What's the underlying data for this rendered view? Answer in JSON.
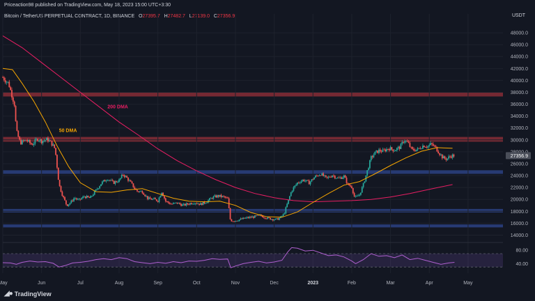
{
  "header": {
    "publish_note": "Priceaction98 published on TradingView.com, May 18, 2023 15:00 UTC+3:30",
    "symbol_desc": "Bitcoin / TetherUS PERPETUAL CONTRACT, 1D, BINANCE",
    "ohlc": [
      {
        "label": "O",
        "value": "27395.7"
      },
      {
        "label": "H",
        "value": "27482.7"
      },
      {
        "label": "L",
        "value": "27139.0"
      },
      {
        "label": "C",
        "value": "27356.9"
      }
    ],
    "currency": "USDT"
  },
  "footer": {
    "brand": "TradingView"
  },
  "colors": {
    "background": "#131722",
    "up": "#26a69a",
    "down": "#ef5350",
    "ma50": "#f7a600",
    "ma200": "#e91e63",
    "resistance_zone": "#7a2a35",
    "support_zone": "#283c78",
    "rsi_line": "#b060d0",
    "price_label": "#4a4e59"
  },
  "chart_data": {
    "type": "candlestick",
    "ylim": [
      13000,
      50000
    ],
    "y_ticks": [
      14000,
      16000,
      18000,
      20000,
      22000,
      24000,
      26000,
      28000,
      30000,
      32000,
      34000,
      36000,
      38000,
      40000,
      42000,
      44000,
      46000,
      48000
    ],
    "y_tick_labels": [
      "14000.0",
      "16000.0",
      "18000.0",
      "20000.0",
      "22000.0",
      "24000.0",
      "26000.0",
      "28000.0",
      "30000.0",
      "32000.0",
      "34000.0",
      "36000.0",
      "38000.0",
      "40000.0",
      "42000.0",
      "44000.0",
      "46000.0",
      "48000.0"
    ],
    "x_ticks": [
      {
        "label": "May",
        "month": 0
      },
      {
        "label": "Jun",
        "month": 1
      },
      {
        "label": "Jul",
        "month": 2
      },
      {
        "label": "Aug",
        "month": 3
      },
      {
        "label": "Sep",
        "month": 4
      },
      {
        "label": "Oct",
        "month": 5
      },
      {
        "label": "Nov",
        "month": 6
      },
      {
        "label": "Dec",
        "month": 7
      },
      {
        "label": "2023",
        "month": 8
      },
      {
        "label": "Feb",
        "month": 9
      },
      {
        "label": "Mar",
        "month": 10
      },
      {
        "label": "Apr",
        "month": 11
      },
      {
        "label": "May",
        "month": 12
      }
    ],
    "x_range_months": [
      0,
      12.9
    ],
    "last_price": "27356.9",
    "last_price_value": 27356.9,
    "price_series": [
      [
        0.0,
        40500
      ],
      [
        0.15,
        39500
      ],
      [
        0.3,
        36000
      ],
      [
        0.35,
        31500
      ],
      [
        0.45,
        29500
      ],
      [
        0.6,
        30000
      ],
      [
        0.75,
        29200
      ],
      [
        0.9,
        30200
      ],
      [
        1.0,
        29800
      ],
      [
        1.15,
        30100
      ],
      [
        1.25,
        29500
      ],
      [
        1.35,
        28500
      ],
      [
        1.45,
        22500
      ],
      [
        1.55,
        20500
      ],
      [
        1.65,
        19000
      ],
      [
        1.75,
        19500
      ],
      [
        1.85,
        20300
      ],
      [
        1.95,
        19800
      ],
      [
        2.1,
        20500
      ],
      [
        2.25,
        20200
      ],
      [
        2.4,
        21500
      ],
      [
        2.55,
        22800
      ],
      [
        2.7,
        23500
      ],
      [
        2.85,
        22800
      ],
      [
        3.0,
        23200
      ],
      [
        3.1,
        24200
      ],
      [
        3.2,
        23600
      ],
      [
        3.3,
        22800
      ],
      [
        3.45,
        21400
      ],
      [
        3.6,
        21300
      ],
      [
        3.75,
        20100
      ],
      [
        3.9,
        20000
      ],
      [
        4.0,
        19800
      ],
      [
        4.1,
        21300
      ],
      [
        4.2,
        19700
      ],
      [
        4.35,
        19200
      ],
      [
        4.5,
        19400
      ],
      [
        4.65,
        19000
      ],
      [
        4.8,
        19300
      ],
      [
        4.95,
        19500
      ],
      [
        5.1,
        19200
      ],
      [
        5.25,
        19600
      ],
      [
        5.4,
        20300
      ],
      [
        5.55,
        20600
      ],
      [
        5.7,
        20400
      ],
      [
        5.8,
        20100
      ],
      [
        5.87,
        16500
      ],
      [
        5.95,
        16400
      ],
      [
        6.1,
        16600
      ],
      [
        6.3,
        16900
      ],
      [
        6.5,
        17100
      ],
      [
        6.65,
        17300
      ],
      [
        6.8,
        16900
      ],
      [
        6.95,
        16700
      ],
      [
        7.05,
        16600
      ],
      [
        7.15,
        16900
      ],
      [
        7.25,
        17500
      ],
      [
        7.35,
        19500
      ],
      [
        7.45,
        21500
      ],
      [
        7.6,
        22800
      ],
      [
        7.75,
        23300
      ],
      [
        7.9,
        22800
      ],
      [
        8.05,
        23800
      ],
      [
        8.2,
        24300
      ],
      [
        8.35,
        23500
      ],
      [
        8.5,
        24100
      ],
      [
        8.65,
        23500
      ],
      [
        8.8,
        23900
      ],
      [
        8.9,
        22500
      ],
      [
        9.0,
        22100
      ],
      [
        9.08,
        20200
      ],
      [
        9.2,
        20800
      ],
      [
        9.3,
        22500
      ],
      [
        9.4,
        24800
      ],
      [
        9.5,
        27000
      ],
      [
        9.6,
        27800
      ],
      [
        9.7,
        28200
      ],
      [
        9.8,
        28100
      ],
      [
        9.95,
        28600
      ],
      [
        10.1,
        28300
      ],
      [
        10.25,
        28800
      ],
      [
        10.35,
        30000
      ],
      [
        10.45,
        29500
      ],
      [
        10.55,
        28300
      ],
      [
        10.7,
        28400
      ],
      [
        10.85,
        29100
      ],
      [
        10.95,
        28900
      ],
      [
        11.05,
        29300
      ],
      [
        11.15,
        28800
      ],
      [
        11.25,
        27900
      ],
      [
        11.35,
        27000
      ],
      [
        11.45,
        26800
      ],
      [
        11.55,
        27300
      ],
      [
        11.65,
        27400
      ]
    ],
    "ma50_series": [
      [
        0.0,
        42000
      ],
      [
        0.25,
        41800
      ],
      [
        0.5,
        39500
      ],
      [
        0.8,
        36500
      ],
      [
        1.1,
        33000
      ],
      [
        1.4,
        29000
      ],
      [
        1.7,
        25500
      ],
      [
        2.0,
        22800
      ],
      [
        2.4,
        21300
      ],
      [
        2.8,
        21200
      ],
      [
        3.2,
        21600
      ],
      [
        3.6,
        21800
      ],
      [
        4.0,
        21000
      ],
      [
        4.4,
        20200
      ],
      [
        4.8,
        19700
      ],
      [
        5.2,
        19600
      ],
      [
        5.6,
        19700
      ],
      [
        6.0,
        19000
      ],
      [
        6.4,
        17800
      ],
      [
        6.8,
        17100
      ],
      [
        7.2,
        17000
      ],
      [
        7.6,
        17900
      ],
      [
        8.0,
        19500
      ],
      [
        8.4,
        21000
      ],
      [
        8.8,
        22400
      ],
      [
        9.2,
        23000
      ],
      [
        9.6,
        24300
      ],
      [
        10.0,
        25700
      ],
      [
        10.4,
        27000
      ],
      [
        10.8,
        28100
      ],
      [
        11.2,
        28700
      ],
      [
        11.6,
        28600
      ]
    ],
    "ma200_series": [
      [
        0.0,
        47500
      ],
      [
        0.5,
        45500
      ],
      [
        1.0,
        43000
      ],
      [
        1.5,
        40500
      ],
      [
        2.0,
        38000
      ],
      [
        2.5,
        35500
      ],
      [
        3.0,
        33000
      ],
      [
        3.5,
        30800
      ],
      [
        4.0,
        28500
      ],
      [
        4.5,
        26500
      ],
      [
        5.0,
        24800
      ],
      [
        5.5,
        23300
      ],
      [
        6.0,
        22000
      ],
      [
        6.5,
        21000
      ],
      [
        7.0,
        20300
      ],
      [
        7.5,
        19800
      ],
      [
        8.0,
        19600
      ],
      [
        8.5,
        19700
      ],
      [
        9.0,
        19800
      ],
      [
        9.5,
        20000
      ],
      [
        10.0,
        20400
      ],
      [
        10.5,
        21000
      ],
      [
        11.0,
        21700
      ],
      [
        11.6,
        22500
      ]
    ],
    "zones": [
      {
        "name": "resistance-zone-38k",
        "type": "resistance",
        "low": 37300,
        "high": 38000
      },
      {
        "name": "resistance-zone-30k",
        "type": "resistance",
        "low": 29700,
        "high": 30500
      },
      {
        "name": "support-zone-24-5k",
        "type": "support",
        "low": 24300,
        "high": 24900
      },
      {
        "name": "support-zone-18k",
        "type": "support",
        "low": 17800,
        "high": 18400
      },
      {
        "name": "support-zone-15-5k",
        "type": "support",
        "low": 15300,
        "high": 15800
      }
    ],
    "annotations": [
      {
        "name": "ma200-label",
        "text": "200 DMA",
        "month": 2.7,
        "price": 35300
      },
      {
        "name": "ma50-label",
        "text": "50 DMA",
        "month": 1.45,
        "price": 31300
      }
    ],
    "rsi": {
      "ylim": [
        20,
        95
      ],
      "y_ticks": [
        40,
        80
      ],
      "y_tick_labels": [
        "40.00",
        "80.00"
      ],
      "band": [
        30,
        70
      ],
      "series": [
        [
          0.0,
          43
        ],
        [
          0.2,
          42
        ],
        [
          0.35,
          38
        ],
        [
          0.5,
          44
        ],
        [
          0.7,
          48
        ],
        [
          0.9,
          45
        ],
        [
          1.1,
          46
        ],
        [
          1.3,
          41
        ],
        [
          1.45,
          30
        ],
        [
          1.6,
          34
        ],
        [
          1.8,
          42
        ],
        [
          2.0,
          44
        ],
        [
          2.2,
          47
        ],
        [
          2.4,
          52
        ],
        [
          2.6,
          55
        ],
        [
          2.8,
          52
        ],
        [
          3.0,
          58
        ],
        [
          3.2,
          55
        ],
        [
          3.4,
          46
        ],
        [
          3.6,
          43
        ],
        [
          3.8,
          40
        ],
        [
          4.0,
          44
        ],
        [
          4.2,
          41
        ],
        [
          4.4,
          46
        ],
        [
          4.6,
          43
        ],
        [
          4.8,
          48
        ],
        [
          5.0,
          47
        ],
        [
          5.2,
          50
        ],
        [
          5.4,
          55
        ],
        [
          5.6,
          53
        ],
        [
          5.8,
          54
        ],
        [
          5.88,
          28
        ],
        [
          6.0,
          33
        ],
        [
          6.2,
          40
        ],
        [
          6.4,
          44
        ],
        [
          6.6,
          47
        ],
        [
          6.8,
          42
        ],
        [
          7.0,
          45
        ],
        [
          7.2,
          50
        ],
        [
          7.35,
          75
        ],
        [
          7.45,
          88
        ],
        [
          7.6,
          86
        ],
        [
          7.8,
          78
        ],
        [
          8.0,
          80
        ],
        [
          8.2,
          72
        ],
        [
          8.4,
          64
        ],
        [
          8.6,
          66
        ],
        [
          8.8,
          60
        ],
        [
          9.0,
          48
        ],
        [
          9.1,
          40
        ],
        [
          9.3,
          52
        ],
        [
          9.5,
          70
        ],
        [
          9.7,
          62
        ],
        [
          9.9,
          64
        ],
        [
          10.1,
          58
        ],
        [
          10.3,
          66
        ],
        [
          10.5,
          52
        ],
        [
          10.7,
          56
        ],
        [
          10.9,
          50
        ],
        [
          11.1,
          44
        ],
        [
          11.3,
          38
        ],
        [
          11.5,
          42
        ],
        [
          11.65,
          44
        ]
      ]
    }
  }
}
